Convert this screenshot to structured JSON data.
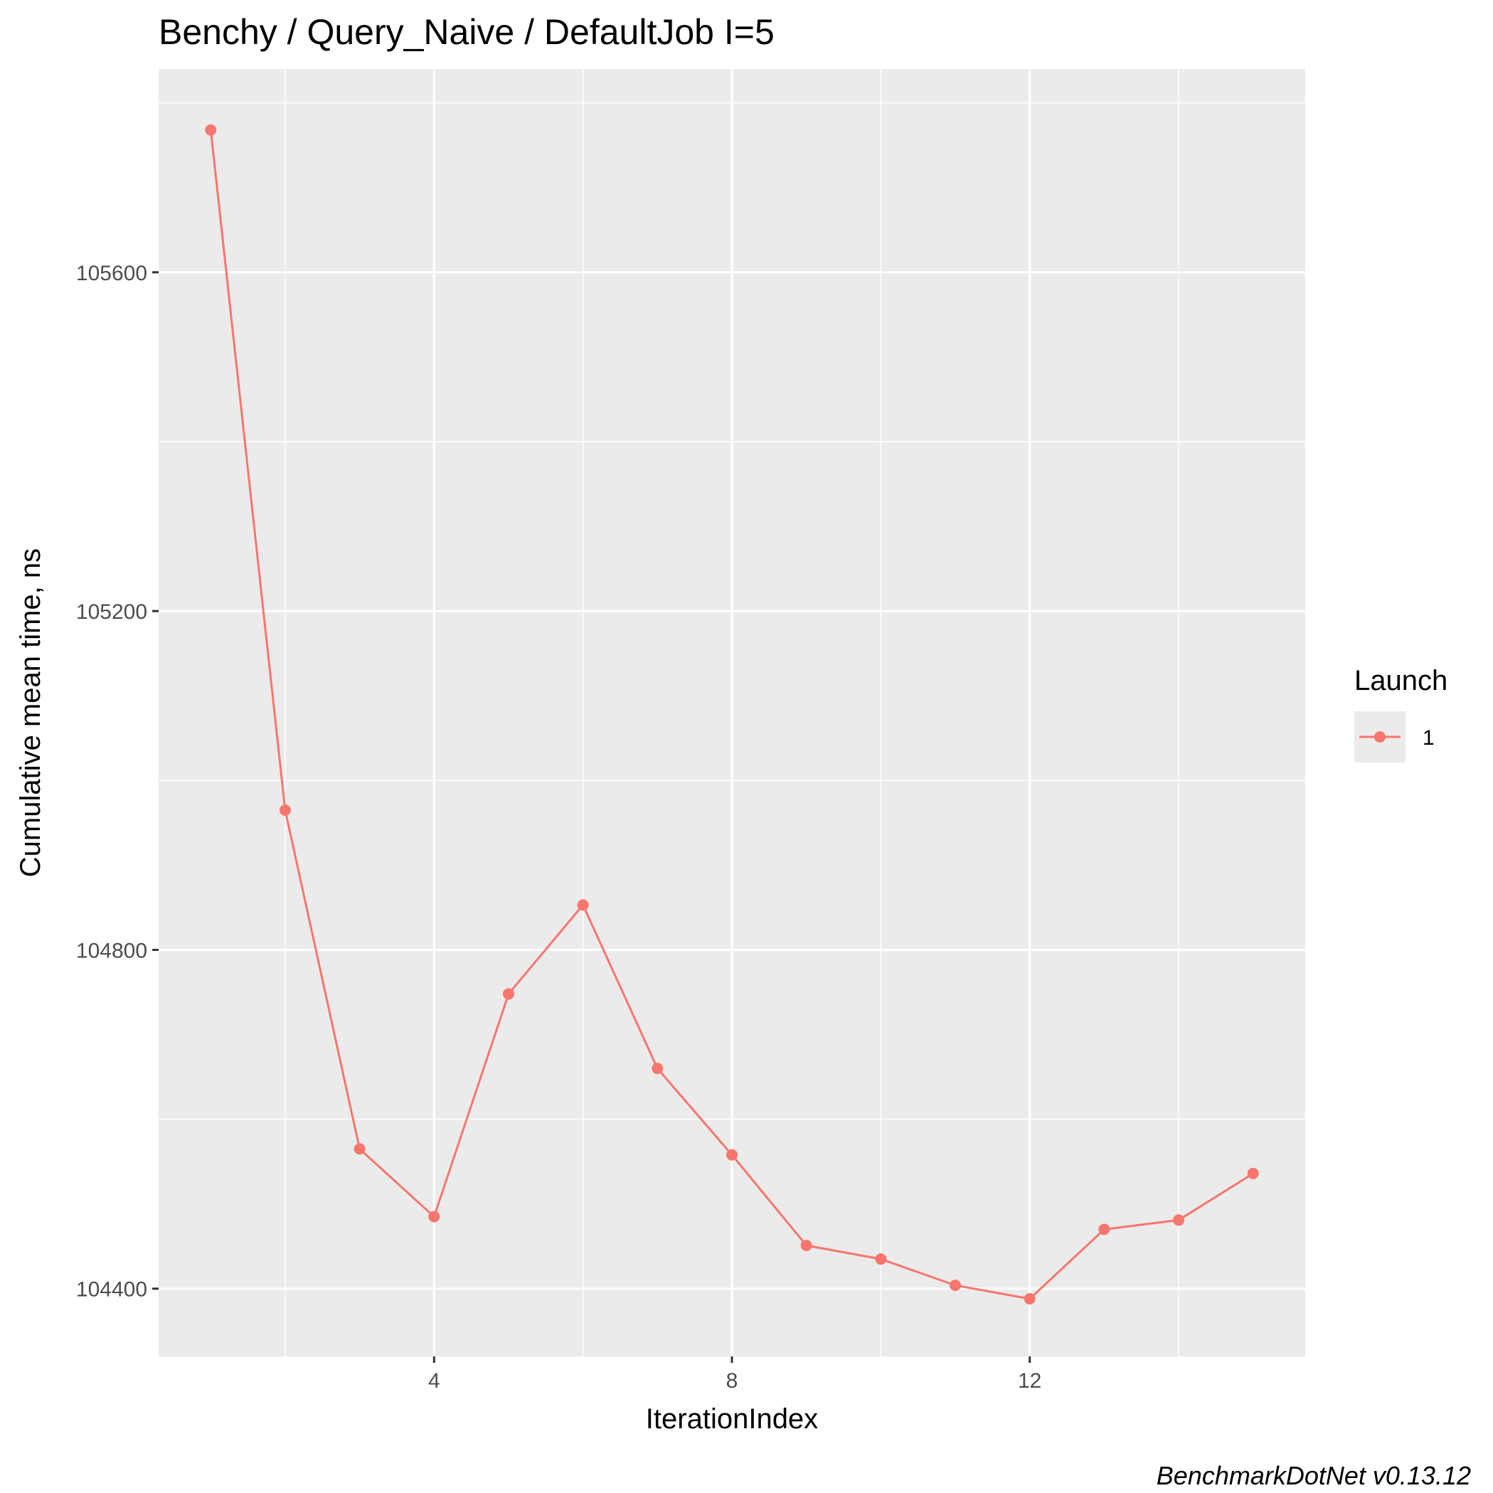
{
  "chart_data": {
    "type": "line",
    "title": "Benchy / Query_Naive / DefaultJob I=5",
    "xlabel": "IterationIndex",
    "ylabel": "Cumulative mean time, ns",
    "caption": "BenchmarkDotNet v0.13.12",
    "xlim": [
      0.3,
      15.7
    ],
    "ylim": [
      104320,
      105840
    ],
    "x_ticks": [
      4,
      8,
      12
    ],
    "x_tick_labels": [
      "4",
      "8",
      "12"
    ],
    "x_minor_ticks": [
      2,
      6,
      10,
      14
    ],
    "y_ticks": [
      104400,
      104800,
      105200,
      105600
    ],
    "y_tick_labels": [
      "104400",
      "104800",
      "105200",
      "105600"
    ],
    "y_minor_ticks": [
      104600,
      105000,
      105400,
      105800
    ],
    "grid": true,
    "legend": {
      "title": "Launch",
      "position": "right"
    },
    "colors": {
      "panel_background": "#ebebeb",
      "grid": "#ffffff",
      "series": "#f8766d"
    },
    "series": [
      {
        "name": "1",
        "x": [
          1,
          2,
          3,
          4,
          5,
          6,
          7,
          8,
          9,
          10,
          11,
          12,
          13,
          14,
          15
        ],
        "y": [
          105768,
          104965,
          104565,
          104485,
          104748,
          104853,
          104660,
          104558,
          104451,
          104435,
          104404,
          104388,
          104470,
          104481,
          104536
        ]
      }
    ]
  }
}
